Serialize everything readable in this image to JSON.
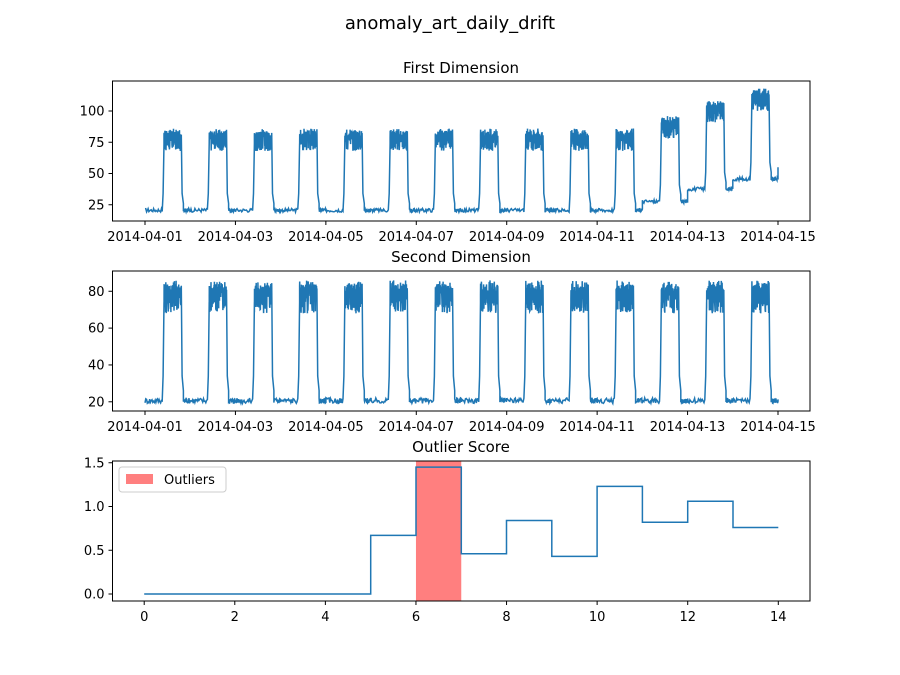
{
  "suptitle": "anomaly_art_daily_drift",
  "colors": {
    "series": "#1f77b4",
    "outlier": "#ff7f7f"
  },
  "chart_data": [
    {
      "type": "line",
      "title": "First Dimension",
      "x_range": [
        "2014-04-01",
        "2014-04-15"
      ],
      "ylim": [
        12,
        124
      ],
      "x_ticks": [
        "2014-04-01",
        "2014-04-03",
        "2014-04-05",
        "2014-04-07",
        "2014-04-09",
        "2014-04-11",
        "2014-04-13",
        "2014-04-15"
      ],
      "y_ticks": [
        25,
        50,
        75,
        100
      ],
      "day_segments": [
        {
          "day": 1,
          "low": 20,
          "high": 80
        },
        {
          "day": 2,
          "low": 20,
          "high": 80
        },
        {
          "day": 3,
          "low": 20,
          "high": 80
        },
        {
          "day": 4,
          "low": 20,
          "high": 80
        },
        {
          "day": 5,
          "low": 20,
          "high": 80
        },
        {
          "day": 6,
          "low": 20,
          "high": 80
        },
        {
          "day": 7,
          "low": 20,
          "high": 80
        },
        {
          "day": 8,
          "low": 20,
          "high": 80
        },
        {
          "day": 9,
          "low": 20,
          "high": 80
        },
        {
          "day": 10,
          "low": 20,
          "high": 80
        },
        {
          "day": 11,
          "low": 20,
          "high": 80
        },
        {
          "day": 12,
          "low": 27,
          "high": 90
        },
        {
          "day": 13,
          "low": 37,
          "high": 103
        },
        {
          "day": 14,
          "low": 45,
          "high": 112
        }
      ],
      "end_value": 55
    },
    {
      "type": "line",
      "title": "Second Dimension",
      "x_range": [
        "2014-04-01",
        "2014-04-15"
      ],
      "ylim": [
        15,
        91
      ],
      "x_ticks": [
        "2014-04-01",
        "2014-04-03",
        "2014-04-05",
        "2014-04-07",
        "2014-04-09",
        "2014-04-11",
        "2014-04-13",
        "2014-04-15"
      ],
      "y_ticks": [
        20,
        40,
        60,
        80
      ],
      "day_segments": [
        {
          "day": 1,
          "low": 20,
          "high": 80
        },
        {
          "day": 2,
          "low": 20,
          "high": 80
        },
        {
          "day": 3,
          "low": 20,
          "high": 80
        },
        {
          "day": 4,
          "low": 20,
          "high": 80
        },
        {
          "day": 5,
          "low": 20,
          "high": 80
        },
        {
          "day": 6,
          "low": 20,
          "high": 80
        },
        {
          "day": 7,
          "low": 20,
          "high": 80
        },
        {
          "day": 8,
          "low": 20,
          "high": 80
        },
        {
          "day": 9,
          "low": 20,
          "high": 80
        },
        {
          "day": 10,
          "low": 20,
          "high": 80
        },
        {
          "day": 11,
          "low": 20,
          "high": 80
        },
        {
          "day": 12,
          "low": 20,
          "high": 80
        },
        {
          "day": 13,
          "low": 20,
          "high": 80
        },
        {
          "day": 14,
          "low": 20,
          "high": 80
        }
      ],
      "end_value": 20
    },
    {
      "type": "line",
      "title": "Outlier Score",
      "xlim": [
        -0.7,
        14.7
      ],
      "ylim": [
        -0.08,
        1.52
      ],
      "x_ticks": [
        0,
        2,
        4,
        6,
        8,
        10,
        12,
        14
      ],
      "y_ticks": [
        0.0,
        0.5,
        1.0,
        1.5
      ],
      "y_tick_labels": [
        "0.0",
        "0.5",
        "1.0",
        "1.5"
      ],
      "step_values": [
        0,
        0,
        0,
        0,
        0,
        0.67,
        1.45,
        0.46,
        0.84,
        0.43,
        1.23,
        0.82,
        1.06,
        0.76
      ],
      "outlier_span": [
        6,
        7
      ],
      "legend": {
        "label": "Outliers",
        "position": "upper-left"
      }
    }
  ]
}
